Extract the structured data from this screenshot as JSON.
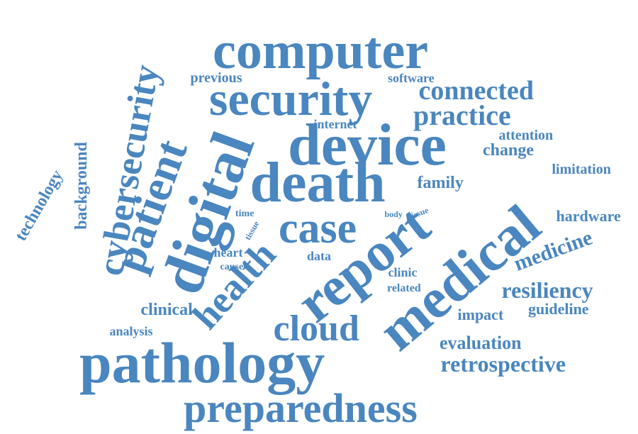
{
  "cloud": {
    "color": "#4a86bf",
    "words": [
      {
        "key": "pathology",
        "text": "pathology"
      },
      {
        "key": "preparedness",
        "text": "preparedness"
      },
      {
        "key": "computer",
        "text": "computer"
      },
      {
        "key": "security",
        "text": "security"
      },
      {
        "key": "device",
        "text": "device"
      },
      {
        "key": "death",
        "text": "death"
      },
      {
        "key": "case",
        "text": "case"
      },
      {
        "key": "report",
        "text": "report"
      },
      {
        "key": "medical",
        "text": "medical"
      },
      {
        "key": "digital",
        "text": "digital"
      },
      {
        "key": "patient",
        "text": "patient"
      },
      {
        "key": "cybersecurity",
        "text": "cybersecurity"
      },
      {
        "key": "health",
        "text": "health"
      },
      {
        "key": "cloud",
        "text": "cloud"
      },
      {
        "key": "connected",
        "text": "connected"
      },
      {
        "key": "practice",
        "text": "practice"
      },
      {
        "key": "resiliency",
        "text": "resiliency"
      },
      {
        "key": "medicine",
        "text": "medicine"
      },
      {
        "key": "retrospective",
        "text": "retrospective"
      },
      {
        "key": "evaluation",
        "text": "evaluation"
      },
      {
        "key": "impact",
        "text": "impact"
      },
      {
        "key": "guideline",
        "text": "guideline"
      },
      {
        "key": "hardware",
        "text": "hardware"
      },
      {
        "key": "limitation",
        "text": "limitation"
      },
      {
        "key": "change",
        "text": "change"
      },
      {
        "key": "attention",
        "text": "attention"
      },
      {
        "key": "family",
        "text": "family"
      },
      {
        "key": "internet",
        "text": "internet"
      },
      {
        "key": "software",
        "text": "software"
      },
      {
        "key": "previous",
        "text": "previous"
      },
      {
        "key": "background",
        "text": "background"
      },
      {
        "key": "technology",
        "text": "technology"
      },
      {
        "key": "clinical",
        "text": "clinical"
      },
      {
        "key": "analysis",
        "text": "analysis"
      },
      {
        "key": "heart",
        "text": "heart"
      },
      {
        "key": "cause",
        "text": "cause"
      },
      {
        "key": "data",
        "text": "data"
      },
      {
        "key": "time",
        "text": "time"
      },
      {
        "key": "tissue",
        "text": "tissue"
      },
      {
        "key": "body",
        "text": "body"
      },
      {
        "key": "issue",
        "text": "issue"
      },
      {
        "key": "clinic",
        "text": "clinic"
      },
      {
        "key": "related",
        "text": "related"
      }
    ]
  }
}
